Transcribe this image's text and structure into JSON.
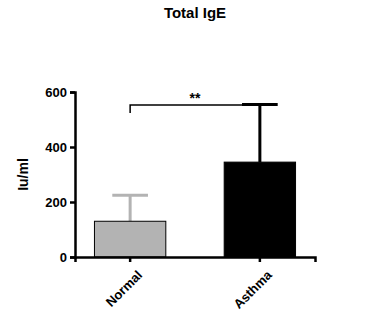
{
  "chart_data": {
    "type": "bar",
    "title": "Total IgE",
    "y_label": "Iu/ml",
    "categories": [
      "Normal",
      "Asthma"
    ],
    "values": [
      130,
      345
    ],
    "errors": [
      95,
      210
    ],
    "colors": [
      "#b3b3b3",
      "#000000"
    ],
    "ylim": [
      0,
      600
    ],
    "yticks": [
      0,
      200,
      400,
      600
    ],
    "grid": false,
    "annotations": [
      {
        "text": "**"
      }
    ]
  }
}
